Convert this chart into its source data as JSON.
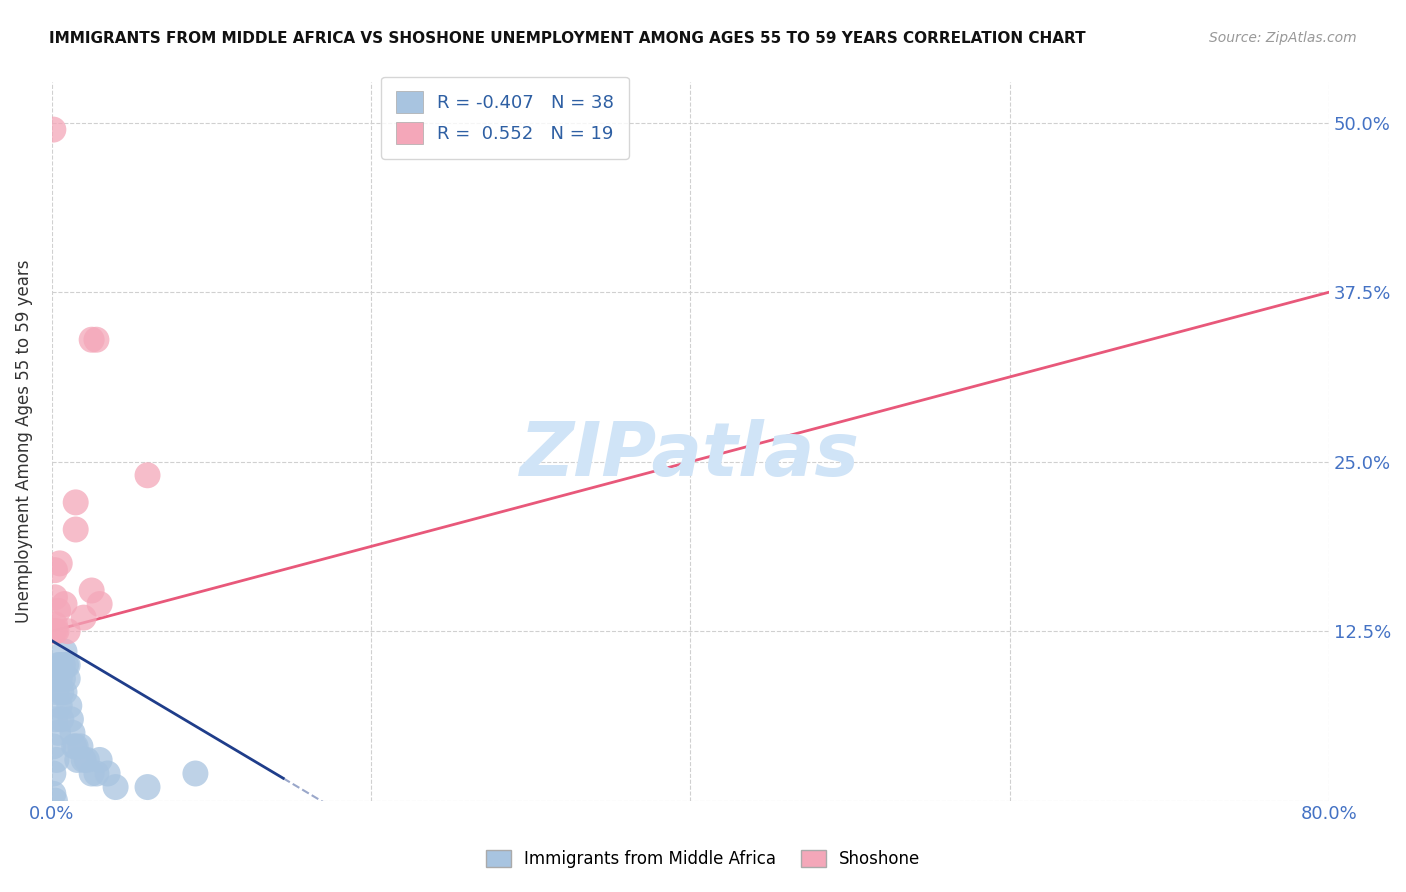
{
  "title": "IMMIGRANTS FROM MIDDLE AFRICA VS SHOSHONE UNEMPLOYMENT AMONG AGES 55 TO 59 YEARS CORRELATION CHART",
  "source": "Source: ZipAtlas.com",
  "ylabel": "Unemployment Among Ages 55 to 59 years",
  "xlim": [
    0.0,
    0.8
  ],
  "ylim": [
    0.0,
    0.53
  ],
  "xticks": [
    0.0,
    0.2,
    0.4,
    0.6,
    0.8
  ],
  "xtick_labels": [
    "0.0%",
    "",
    "",
    "",
    "80.0%"
  ],
  "yticks": [
    0.0,
    0.125,
    0.25,
    0.375,
    0.5
  ],
  "ytick_labels": [
    "",
    "12.5%",
    "25.0%",
    "37.5%",
    "50.0%"
  ],
  "ytick_color": "#4472c4",
  "xtick_color": "#4472c4",
  "legend_r1": "R = -0.407",
  "legend_n1": "N = 38",
  "legend_r2": "R =  0.552",
  "legend_n2": "N = 19",
  "blue_color": "#a8c4e0",
  "pink_color": "#f4a7b9",
  "blue_line_color": "#1f3d8a",
  "pink_line_color": "#e8587a",
  "watermark": "ZIPatlas",
  "watermark_color": "#d0e4f7",
  "background_color": "#ffffff",
  "grid_color": "#d0d0d0",
  "blue_dots_x": [
    0.001,
    0.001,
    0.001,
    0.002,
    0.002,
    0.002,
    0.003,
    0.003,
    0.004,
    0.004,
    0.005,
    0.005,
    0.005,
    0.006,
    0.006,
    0.007,
    0.007,
    0.008,
    0.008,
    0.009,
    0.01,
    0.01,
    0.011,
    0.012,
    0.013,
    0.014,
    0.015,
    0.016,
    0.018,
    0.02,
    0.022,
    0.025,
    0.028,
    0.03,
    0.035,
    0.04,
    0.06,
    0.09
  ],
  "blue_dots_y": [
    0.005,
    0.02,
    0.04,
    0.0,
    0.06,
    0.09,
    0.03,
    0.08,
    0.05,
    0.1,
    0.07,
    0.1,
    0.09,
    0.08,
    0.06,
    0.1,
    0.09,
    0.11,
    0.08,
    0.1,
    0.09,
    0.1,
    0.07,
    0.06,
    0.05,
    0.04,
    0.04,
    0.03,
    0.04,
    0.03,
    0.03,
    0.02,
    0.02,
    0.03,
    0.02,
    0.01,
    0.01,
    0.02
  ],
  "pink_dots_x": [
    0.001,
    0.002,
    0.003,
    0.004,
    0.005,
    0.008,
    0.01,
    0.015,
    0.02,
    0.025,
    0.03,
    0.015,
    0.06,
    0.001,
    0.002,
    0.002,
    0.002,
    0.025,
    0.028
  ],
  "pink_dots_y": [
    0.125,
    0.125,
    0.125,
    0.14,
    0.175,
    0.145,
    0.125,
    0.2,
    0.135,
    0.155,
    0.145,
    0.22,
    0.24,
    0.495,
    0.17,
    0.15,
    0.13,
    0.34,
    0.34
  ],
  "pink_line_intercept": 0.125,
  "pink_line_slope": 0.3125,
  "blue_line_intercept": 0.118,
  "blue_line_slope": -0.7,
  "blue_line_x_solid_end": 0.145,
  "blue_line_x_dash_end": 0.38
}
